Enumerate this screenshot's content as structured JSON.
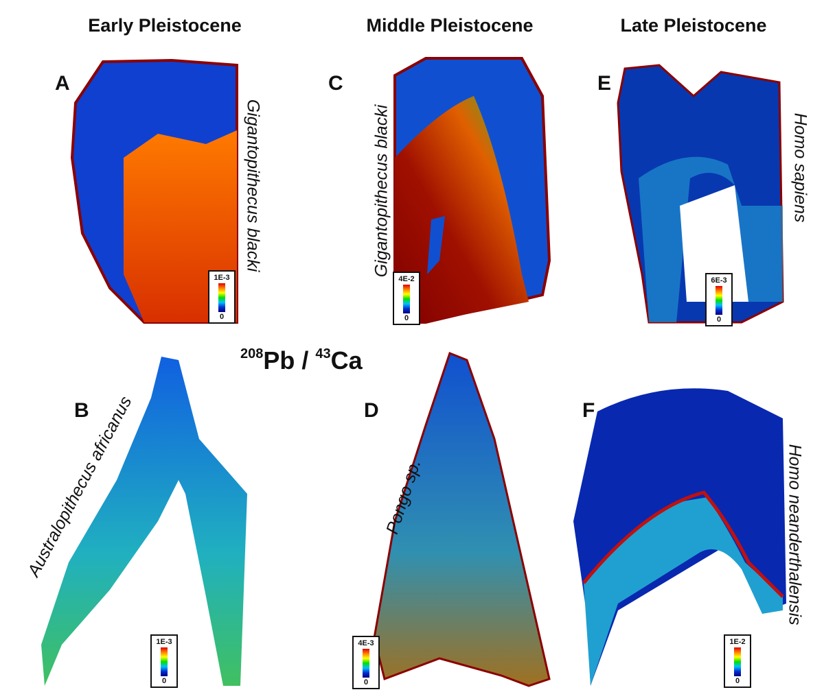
{
  "headers": [
    "Early Pleistocene",
    "Middle Pleistocene",
    "Late Pleistocene"
  ],
  "title": {
    "iso1": "208",
    "el1": "Pb",
    "sep": " / ",
    "iso2": "43",
    "el2": "Ca"
  },
  "panels": [
    {
      "letter": "A",
      "species": "Gigantopithecus blacki",
      "scale_max": "1E-3",
      "scale_min": "0"
    },
    {
      "letter": "B",
      "species": "Australopithecus africanus",
      "scale_max": "1E-3",
      "scale_min": "0"
    },
    {
      "letter": "C",
      "species": "Gigantopithecus blacki",
      "scale_max": "4E-2",
      "scale_min": "0"
    },
    {
      "letter": "D",
      "species": "Pongo sp.",
      "scale_max": "4E-3",
      "scale_min": "0"
    },
    {
      "letter": "E",
      "species": "Homo sapiens",
      "scale_max": "6E-3",
      "scale_min": "0"
    },
    {
      "letter": "F",
      "species": "Homo neanderthalensis",
      "scale_max": "1E-2",
      "scale_min": "0"
    }
  ],
  "colors": {
    "low": "#0030d0",
    "mid": "#00e000",
    "high": "#e00000",
    "rim": "#8b0000"
  }
}
